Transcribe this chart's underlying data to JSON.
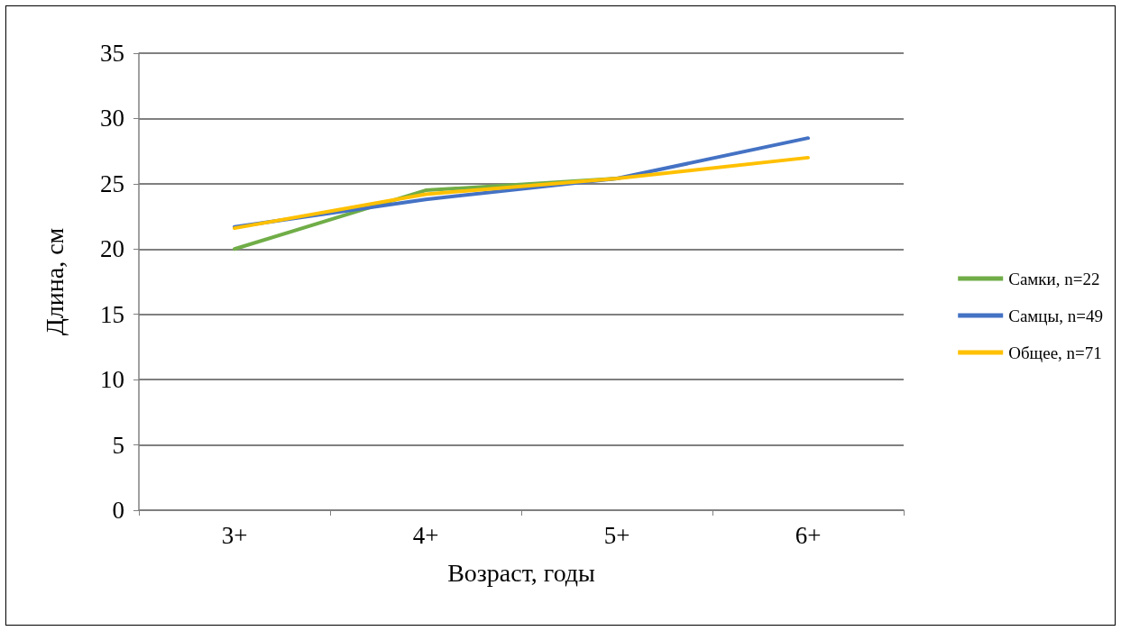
{
  "chart_data": {
    "type": "line",
    "xlabel": "Возраст, годы",
    "ylabel": "Длина, см",
    "categories": [
      "3+",
      "4+",
      "5+",
      "6+"
    ],
    "series": [
      {
        "name": "Самки, n=22",
        "color": "#70ad47",
        "values": [
          20,
          24.5,
          25.4,
          null
        ]
      },
      {
        "name": "Самцы, n=49",
        "color": "#4472c4",
        "values": [
          21.7,
          23.8,
          25.4,
          28.5
        ]
      },
      {
        "name": "Общее, n=71",
        "color": "#ffc000",
        "values": [
          21.6,
          24.2,
          25.4,
          27.0
        ]
      }
    ],
    "ylim": [
      0,
      35
    ],
    "yticks": [
      0,
      5,
      10,
      15,
      20,
      25,
      30,
      35
    ],
    "grid": "y",
    "legend": "right",
    "marker": "none",
    "line_style": "solid"
  }
}
